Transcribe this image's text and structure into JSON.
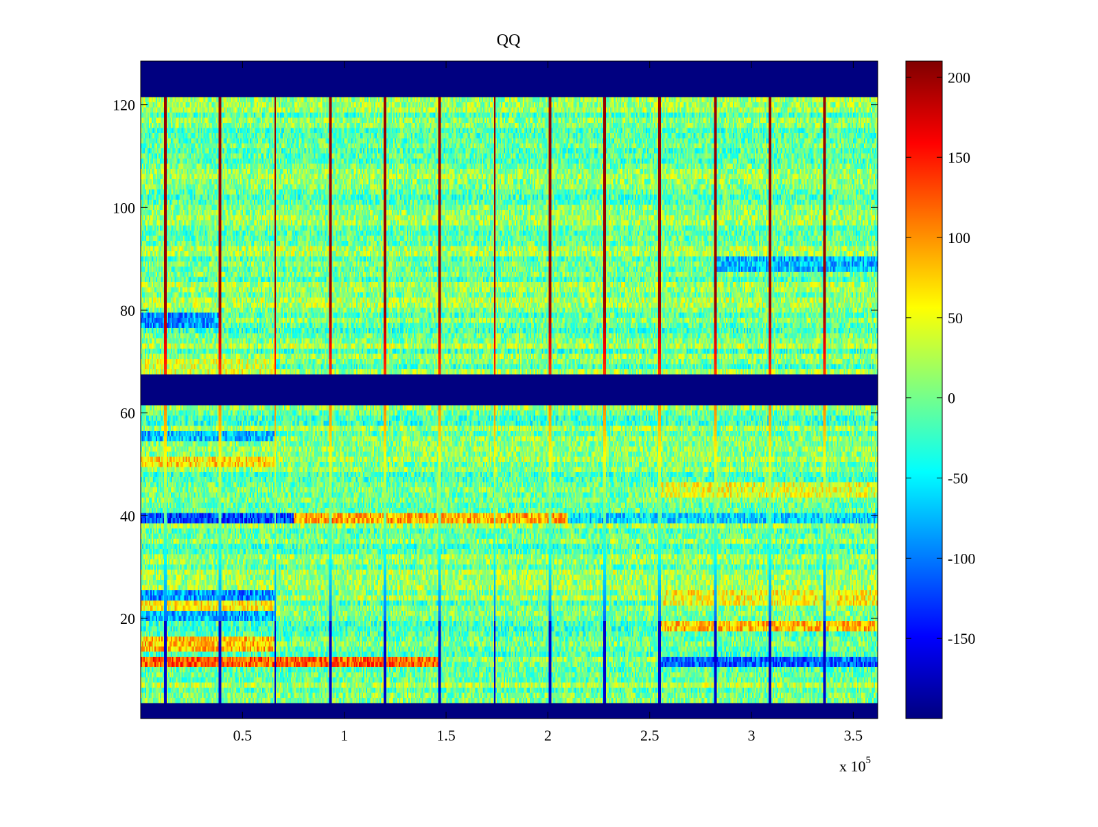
{
  "chart_data": {
    "type": "heatmap",
    "title": "QQ",
    "xlabel": "",
    "ylabel": "",
    "x_exponent_label": "x 10",
    "x_exponent_power": "5",
    "xlim": [
      0,
      3.62
    ],
    "ylim": [
      0.5,
      128.5
    ],
    "x_ticks": [
      0.5,
      1,
      1.5,
      2,
      2.5,
      3,
      3.5
    ],
    "x_tick_labels": [
      "0.5",
      "1",
      "1.5",
      "2",
      "2.5",
      "3",
      "3.5"
    ],
    "y_ticks": [
      20,
      40,
      60,
      80,
      100,
      120
    ],
    "y_tick_labels": [
      "20",
      "40",
      "60",
      "80",
      "100",
      "120"
    ],
    "colorbar": {
      "colormap": "jet",
      "clim": [
        -200,
        210
      ],
      "ticks": [
        -150,
        -100,
        -50,
        0,
        50,
        100,
        150,
        200
      ],
      "tick_labels": [
        "-150",
        "-100",
        "-50",
        "0",
        "50",
        "100",
        "150",
        "200"
      ]
    },
    "rows": 128,
    "empty_row_bands": [
      [
        1,
        3
      ],
      [
        62,
        67
      ],
      [
        122,
        128
      ]
    ],
    "empty_band_value": -200,
    "background_value": 0,
    "vertical_marker_lines_x": [
      0.12,
      0.39,
      0.66,
      0.93,
      1.2,
      1.47,
      1.74,
      2.01,
      2.28,
      2.55,
      2.82,
      3.09,
      3.36
    ],
    "vertical_marker_value_top": 200,
    "vertical_marker_value_bottom": -200,
    "row_band_patterns": [
      {
        "rows": [
          11,
          12
        ],
        "x_range": [
          0,
          1.47
        ],
        "value": 120
      },
      {
        "rows": [
          11,
          12
        ],
        "x_range": [
          2.55,
          3.62
        ],
        "value": -110
      },
      {
        "rows": [
          14,
          16
        ],
        "x_range": [
          0,
          0.66
        ],
        "value": 80
      },
      {
        "rows": [
          18,
          19
        ],
        "x_range": [
          2.55,
          3.62
        ],
        "value": 80
      },
      {
        "rows": [
          20,
          21
        ],
        "x_range": [
          0,
          0.66
        ],
        "value": -80
      },
      {
        "rows": [
          22,
          23
        ],
        "x_range": [
          0,
          0.66
        ],
        "value": 60
      },
      {
        "rows": [
          24,
          25
        ],
        "x_range": [
          0,
          0.66
        ],
        "value": -90
      },
      {
        "rows": [
          23,
          25
        ],
        "x_range": [
          2.55,
          3.62
        ],
        "value": 55
      },
      {
        "rows": [
          39,
          40
        ],
        "x_range": [
          0,
          0.75
        ],
        "value": -120
      },
      {
        "rows": [
          39,
          40
        ],
        "x_range": [
          0.75,
          2.1
        ],
        "value": 90
      },
      {
        "rows": [
          39,
          40
        ],
        "x_range": [
          2.1,
          3.62
        ],
        "value": -60
      },
      {
        "rows": [
          44,
          46
        ],
        "x_range": [
          2.55,
          3.62
        ],
        "value": 45
      },
      {
        "rows": [
          50,
          51
        ],
        "x_range": [
          0,
          0.66
        ],
        "value": 70
      },
      {
        "rows": [
          55,
          56
        ],
        "x_range": [
          0,
          0.66
        ],
        "value": -70
      },
      {
        "rows": [
          77,
          79
        ],
        "x_range": [
          0,
          0.39
        ],
        "value": -90
      },
      {
        "rows": [
          88,
          90
        ],
        "x_range": [
          2.82,
          3.62
        ],
        "value": -70
      },
      {
        "rows": [
          68,
          70
        ],
        "x_range": [
          0,
          0.66
        ],
        "value": 40
      }
    ]
  }
}
